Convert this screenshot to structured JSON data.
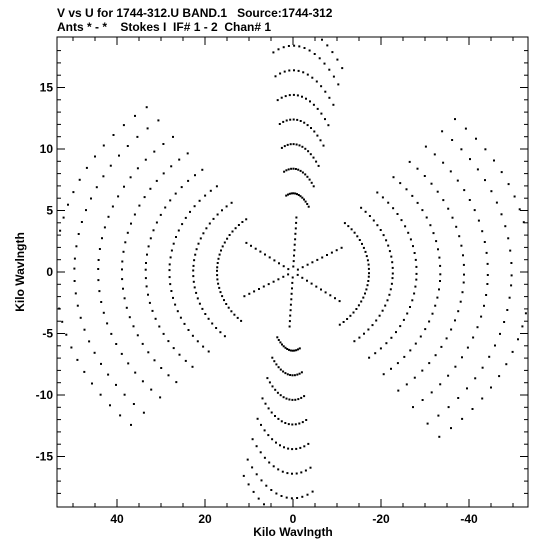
{
  "header": {
    "line1": "V vs U for 1744-312.U BAND.1   Source:1744-312",
    "line2": "Ants * - *    Stokes I  IF# 1 - 2  Chan# 1"
  },
  "chart_data": {
    "type": "scatter",
    "xlabel": "Kilo Wavlngth",
    "ylabel": "Kilo Wavlngth",
    "xlim": [
      55,
      -55
    ],
    "ylim": [
      -19,
      19
    ],
    "x_ticks": [
      40,
      20,
      0,
      -20,
      -40
    ],
    "x_tick_labels": [
      "40",
      "20",
      "0",
      "-20",
      "-40"
    ],
    "y_ticks": [
      15,
      10,
      5,
      0,
      -5,
      -10,
      -15
    ],
    "y_tick_labels": [
      "15",
      "10",
      "5",
      "0",
      "-5",
      "-10",
      "-15"
    ],
    "grid": false,
    "marker_color": "#000000",
    "arms": [
      {
        "angle_deg": 28,
        "max_radius": 54,
        "points_per_track": 14
      },
      {
        "angle_deg": 157,
        "max_radius": 54,
        "points_per_track": 14
      },
      {
        "angle_deg": 100,
        "max_radius": 20,
        "points_per_track": 14
      }
    ],
    "track_radii_fraction": [
      0.32,
      0.42,
      0.52,
      0.62,
      0.72,
      0.82,
      0.92,
      1.0
    ],
    "arm_half_width_deg": 24
  }
}
